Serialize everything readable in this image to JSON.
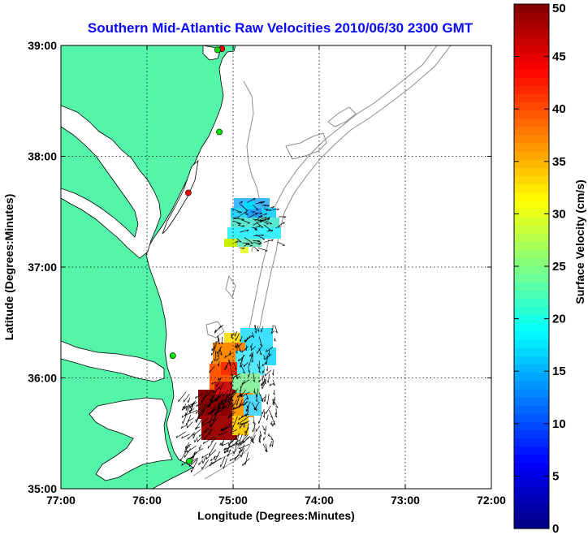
{
  "title": "Southern Mid-Atlantic Raw Velocities 2010/06/30 2300 GMT",
  "axes": {
    "xlabel": "Longitude (Degrees:Minutes)",
    "ylabel": "Latitude (Degrees:Minutes)",
    "x_ticks": [
      "77:00",
      "76:00",
      "75:00",
      "74:00",
      "73:00",
      "72:00"
    ],
    "y_ticks": [
      "39:00",
      "38:00",
      "37:00",
      "36:00",
      "35:00"
    ],
    "lon_range": [
      -77,
      -72
    ],
    "lat_range": [
      35,
      39
    ],
    "grid": "dotted"
  },
  "colorbar": {
    "label": "Surface Velocity (cm/s)",
    "ticks": [
      "50",
      "45",
      "40",
      "35",
      "30",
      "25",
      "20",
      "15",
      "10",
      "5",
      "0"
    ],
    "range": [
      0,
      50
    ],
    "colormap": "jet"
  },
  "colors": {
    "land": "#55f5a9",
    "coastline": "#000000",
    "bathymetry": "#8c8c8c",
    "title": "#0a0aff",
    "station_active": "#00e000",
    "station_inactive": "#ff0000"
  },
  "stations": [
    {
      "lon": -75.13,
      "lat": 38.97,
      "status": "inactive"
    },
    {
      "lon": -75.18,
      "lat": 38.96,
      "status": "active"
    },
    {
      "lon": -75.16,
      "lat": 38.22,
      "status": "active"
    },
    {
      "lon": -75.52,
      "lat": 37.67,
      "status": "inactive"
    },
    {
      "lon": -75.7,
      "lat": 36.2,
      "status": "active"
    },
    {
      "lon": -75.51,
      "lat": 35.25,
      "status": "active"
    }
  ]
}
